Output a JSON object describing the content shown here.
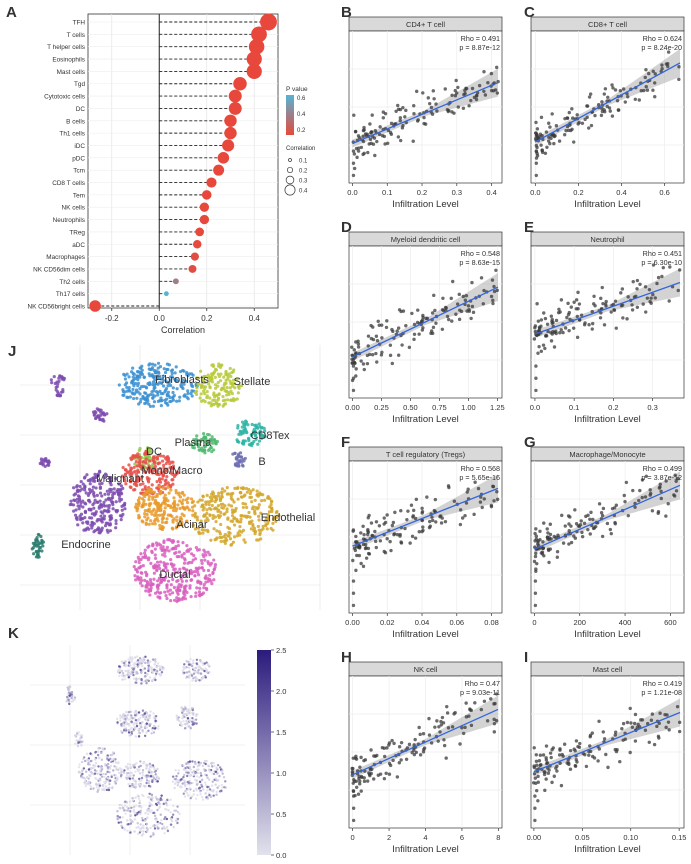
{
  "panel_labels": {
    "A": "A",
    "B": "B",
    "C": "C",
    "D": "D",
    "E": "E",
    "F": "F",
    "G": "G",
    "H": "H",
    "I": "I",
    "J": "J",
    "K": "K"
  },
  "chart_data": [
    {
      "id": "A",
      "type": "scatter",
      "subtype": "lollipop",
      "title": "",
      "xlabel": "Correlation",
      "ylabel": "",
      "xlim": [
        -0.3,
        0.5
      ],
      "xticks": [
        -0.2,
        0.0,
        0.2,
        0.4
      ],
      "xtick_labels": [
        "-0.2",
        "0.0",
        "0.2",
        "0.4"
      ],
      "categories": [
        "TFH",
        "T cells",
        "T helper cells",
        "Eosinophils",
        "Mast cells",
        "Tgd",
        "Cytotoxic cells",
        "DC",
        "B cells",
        "Th1 cells",
        "iDC",
        "pDC",
        "Tcm",
        "CD8 T cells",
        "Tem",
        "NK cells",
        "Neutrophils",
        "TReg",
        "aDC",
        "Macrophages",
        "NK CD56dim cells",
        "Th2 cells",
        "Th17 cells",
        "NK CD56bright cells"
      ],
      "values": [
        0.46,
        0.42,
        0.41,
        0.4,
        0.4,
        0.34,
        0.32,
        0.32,
        0.3,
        0.3,
        0.29,
        0.27,
        0.25,
        0.22,
        0.2,
        0.19,
        0.19,
        0.17,
        0.16,
        0.15,
        0.14,
        0.07,
        0.03,
        -0.27
      ],
      "pvalues": [
        0.0,
        0.0,
        0.0,
        0.0,
        0.0,
        0.0,
        0.0,
        0.0,
        0.0,
        0.0,
        0.0,
        0.0,
        0.0,
        0.0,
        0.0,
        0.0,
        0.0,
        0.0,
        0.01,
        0.02,
        0.03,
        0.3,
        0.6,
        0.0
      ],
      "legend": {
        "pvalue_title": "P value",
        "pvalue_ticks": [
          "0.6",
          "0.4",
          "0.2"
        ],
        "size_title": "Correlation",
        "size_ticks": [
          "0.1",
          "0.2",
          "0.3",
          "0.4"
        ],
        "color_low": "#e8483b",
        "color_high": "#56b4d3"
      }
    },
    {
      "id": "B",
      "type": "scatter",
      "title": "CD4+ T cell",
      "xlabel": "Infiltration Level",
      "xlim": [
        -0.01,
        0.43
      ],
      "xticks": [
        0,
        0.1,
        0.2,
        0.3,
        0.4
      ],
      "xtick_labels": [
        "0.0",
        "0.1",
        "0.2",
        "0.3",
        "0.4"
      ],
      "ylim": [
        0,
        1
      ],
      "rho": "Rho = 0.491",
      "p": "p = 8.87e-12",
      "fit": [
        0.26,
        0.66
      ],
      "seed": 11,
      "spread": 0.09
    },
    {
      "id": "C",
      "type": "scatter",
      "title": "CD8+ T cell",
      "xlabel": "Infiltration Level",
      "xlim": [
        -0.02,
        0.69
      ],
      "xticks": [
        0,
        0.2,
        0.4,
        0.6
      ],
      "xtick_labels": [
        "0.0",
        "0.2",
        "0.4",
        "0.6"
      ],
      "ylim": [
        0,
        1
      ],
      "rho": "Rho = 0.624",
      "p": "p = 8.24e-20",
      "fit": [
        0.27,
        0.79
      ],
      "seed": 23,
      "spread": 0.09
    },
    {
      "id": "D",
      "type": "scatter",
      "title": "Myeloid dendritic cell",
      "xlabel": "Infiltration Level",
      "xlim": [
        -0.03,
        1.29
      ],
      "xticks": [
        0,
        0.25,
        0.5,
        0.75,
        1.0,
        1.25
      ],
      "xtick_labels": [
        "0.00",
        "0.25",
        "0.50",
        "0.75",
        "1.00",
        "1.25"
      ],
      "ylim": [
        0,
        1
      ],
      "rho": "Rho = 0.548",
      "p": "p = 8.63e-15",
      "fit": [
        0.27,
        0.73
      ],
      "seed": 37,
      "spread": 0.1
    },
    {
      "id": "E",
      "type": "scatter",
      "title": "Neutrophil",
      "xlabel": "Infiltration Level",
      "xlim": [
        -0.01,
        0.38
      ],
      "xticks": [
        0,
        0.1,
        0.2,
        0.3
      ],
      "xtick_labels": [
        "0.0",
        "0.1",
        "0.2",
        "0.3"
      ],
      "ylim": [
        0,
        1
      ],
      "rho": "Rho = 0.451",
      "p": "p = 6.30e-10",
      "fit": [
        0.42,
        0.76
      ],
      "seed": 41,
      "spread": 0.1
    },
    {
      "id": "F",
      "type": "scatter",
      "title": "T cell regulatory (Tregs)",
      "xlabel": "Infiltration Level",
      "xlim": [
        -0.002,
        0.086
      ],
      "xticks": [
        0,
        0.02,
        0.04,
        0.06,
        0.08
      ],
      "xtick_labels": [
        "0.00",
        "0.02",
        "0.04",
        "0.06",
        "0.08"
      ],
      "ylim": [
        0,
        1
      ],
      "rho": "Rho = 0.568",
      "p": "p = 5.65e-16",
      "fit": [
        0.44,
        0.82
      ],
      "seed": 53,
      "spread": 0.1
    },
    {
      "id": "G",
      "type": "scatter",
      "title": "Macrophage/Monocyte",
      "xlabel": "Infiltration Level",
      "xlim": [
        -15,
        660
      ],
      "xticks": [
        0,
        200,
        400,
        600
      ],
      "xtick_labels": [
        "0",
        "200",
        "400",
        "600"
      ],
      "ylim": [
        0,
        1
      ],
      "rho": "Rho = 0.499",
      "p": "p = 3.87e-12",
      "fit": [
        0.42,
        0.84
      ],
      "seed": 61,
      "spread": 0.1
    },
    {
      "id": "H",
      "type": "scatter",
      "title": "NK cell",
      "xlabel": "Infiltration Level",
      "xlim": [
        -0.2,
        8.2
      ],
      "xticks": [
        0,
        2,
        4,
        6,
        8
      ],
      "xtick_labels": [
        "0",
        "2",
        "4",
        "6",
        "8"
      ],
      "ylim": [
        0,
        1
      ],
      "rho": "Rho = 0.47",
      "p": "p = 9.03e-11",
      "fit": [
        0.35,
        0.78
      ],
      "seed": 71,
      "spread": 0.1
    },
    {
      "id": "I",
      "type": "scatter",
      "title": "Mast cell",
      "xlabel": "Infiltration Level",
      "xlim": [
        -0.003,
        0.155
      ],
      "xticks": [
        0,
        0.05,
        0.1,
        0.15
      ],
      "xtick_labels": [
        "0.00",
        "0.05",
        "0.10",
        "0.15"
      ],
      "ylim": [
        0,
        1
      ],
      "rho": "Rho = 0.419",
      "p": "p = 1.21e-08",
      "fit": [
        0.37,
        0.76
      ],
      "seed": 83,
      "spread": 0.1
    },
    {
      "id": "J",
      "type": "scatter",
      "subtype": "umap-clusters",
      "clusters": [
        {
          "name": "Fibroblasts",
          "color": "#3a8fd1"
        },
        {
          "name": "Stellate",
          "color": "#b7c93a"
        },
        {
          "name": "Plasma",
          "color": "#4fb870"
        },
        {
          "name": "CD8Tex",
          "color": "#2fb4a6"
        },
        {
          "name": "DC",
          "color": "#8fc94a"
        },
        {
          "name": "Mono/Macro",
          "color": "#e8504a"
        },
        {
          "name": "B",
          "color": "#6d6fb3"
        },
        {
          "name": "Malignant",
          "color": "#7d4bb0"
        },
        {
          "name": "Acinar",
          "color": "#e89a2a"
        },
        {
          "name": "Endothelial",
          "color": "#d4a72a"
        },
        {
          "name": "Endocrine",
          "color": "#2d7d6f"
        },
        {
          "name": "Ductal",
          "color": "#d85fc0"
        }
      ]
    },
    {
      "id": "K",
      "type": "heatmap",
      "subtype": "umap-expression",
      "colorbar_ticks": [
        "2.5",
        "2.0",
        "1.5",
        "1.0",
        "0.5",
        "0.0"
      ],
      "colorbar_range": [
        0,
        2.5
      ],
      "color_low": "#e2e2ec",
      "color_high": "#2b1b7d"
    }
  ]
}
